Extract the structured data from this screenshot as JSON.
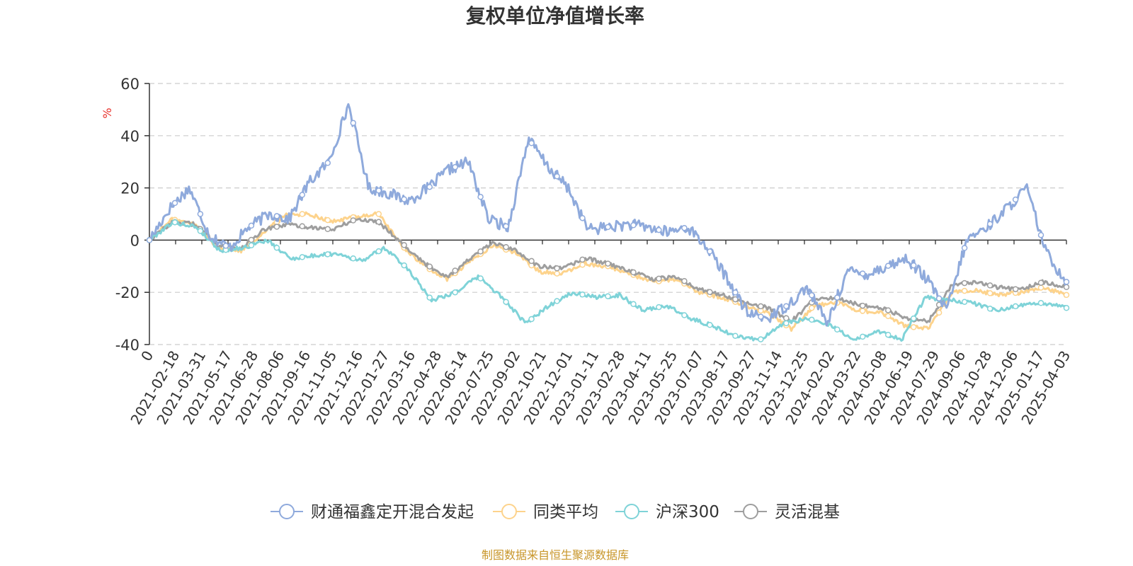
{
  "chart_data": {
    "type": "line",
    "title": "复权单位净值增长率",
    "ylabel": "%",
    "xlabel": "",
    "ylim": [
      -40,
      60
    ],
    "yticks": [
      -40,
      -20,
      0,
      20,
      40,
      60
    ],
    "grid": true,
    "legend_position": "bottom",
    "x_tick_labels": [
      "0",
      "2021-02-18",
      "2021-03-31",
      "2021-05-17",
      "2021-06-28",
      "2021-08-06",
      "2021-09-16",
      "2021-11-05",
      "2021-12-16",
      "2022-01-27",
      "2022-03-16",
      "2022-04-28",
      "2022-06-14",
      "2022-07-25",
      "2022-09-02",
      "2022-10-21",
      "2022-12-01",
      "2023-01-11",
      "2023-02-28",
      "2023-04-11",
      "2023-05-25",
      "2023-07-07",
      "2023-08-17",
      "2023-09-27",
      "2023-11-14",
      "2023-12-25",
      "2024-02-02",
      "2024-03-22",
      "2024-05-08",
      "2024-06-19",
      "2024-07-29",
      "2024-09-06",
      "2024-10-28",
      "2024-12-06",
      "2025-01-17",
      "2025-04-03"
    ],
    "series": [
      {
        "name": "财通福鑫定开混合发起",
        "color": "#8faadc",
        "values": [
          0,
          12,
          20,
          2,
          -3,
          5,
          10,
          8,
          22,
          30,
          52,
          20,
          18,
          15,
          20,
          27,
          30,
          8,
          5,
          39,
          28,
          20,
          4,
          5,
          6,
          5,
          3,
          5,
          -3,
          -15,
          -28,
          -30,
          -25,
          -18,
          -32,
          -12,
          -13,
          -10,
          -7,
          -15,
          -27,
          0,
          5,
          12,
          20,
          -5,
          -16
        ]
      },
      {
        "name": "同类平均",
        "color": "#fdd38c",
        "values": [
          0,
          8,
          6,
          -3,
          -4,
          3,
          10,
          10,
          7,
          9,
          10,
          -2,
          -10,
          -15,
          -8,
          -2,
          -5,
          -12,
          -13,
          -9,
          -10,
          -13,
          -16,
          -15,
          -20,
          -22,
          -25,
          -28,
          -34,
          -25,
          -24,
          -27,
          -28,
          -33,
          -34,
          -20,
          -19,
          -21,
          -20,
          -18,
          -21
        ]
      },
      {
        "name": "沪深300",
        "color": "#7fd3d8",
        "values": [
          0,
          7,
          5,
          -4,
          -3,
          0,
          -7,
          -6,
          -5,
          -8,
          -3,
          -11,
          -23,
          -20,
          -14,
          -22,
          -32,
          -25,
          -20,
          -22,
          -21,
          -27,
          -25,
          -30,
          -33,
          -37,
          -38,
          -32,
          -30,
          -33,
          -38,
          -35,
          -38,
          -22,
          -23,
          -24,
          -27,
          -25,
          -24,
          -26
        ]
      },
      {
        "name": "灵活混基",
        "color": "#9e9e9e",
        "values": [
          0,
          7,
          6,
          -2,
          -3,
          4,
          6,
          5,
          4,
          8,
          7,
          -1,
          -9,
          -14,
          -7,
          -1,
          -4,
          -10,
          -11,
          -7,
          -9,
          -12,
          -15,
          -14,
          -19,
          -21,
          -24,
          -26,
          -31,
          -23,
          -22,
          -25,
          -26,
          -30,
          -31,
          -17,
          -16,
          -18,
          -19,
          -16,
          -18
        ]
      }
    ]
  },
  "footer": {
    "source": "制图数据来自恒生聚源数据库"
  }
}
